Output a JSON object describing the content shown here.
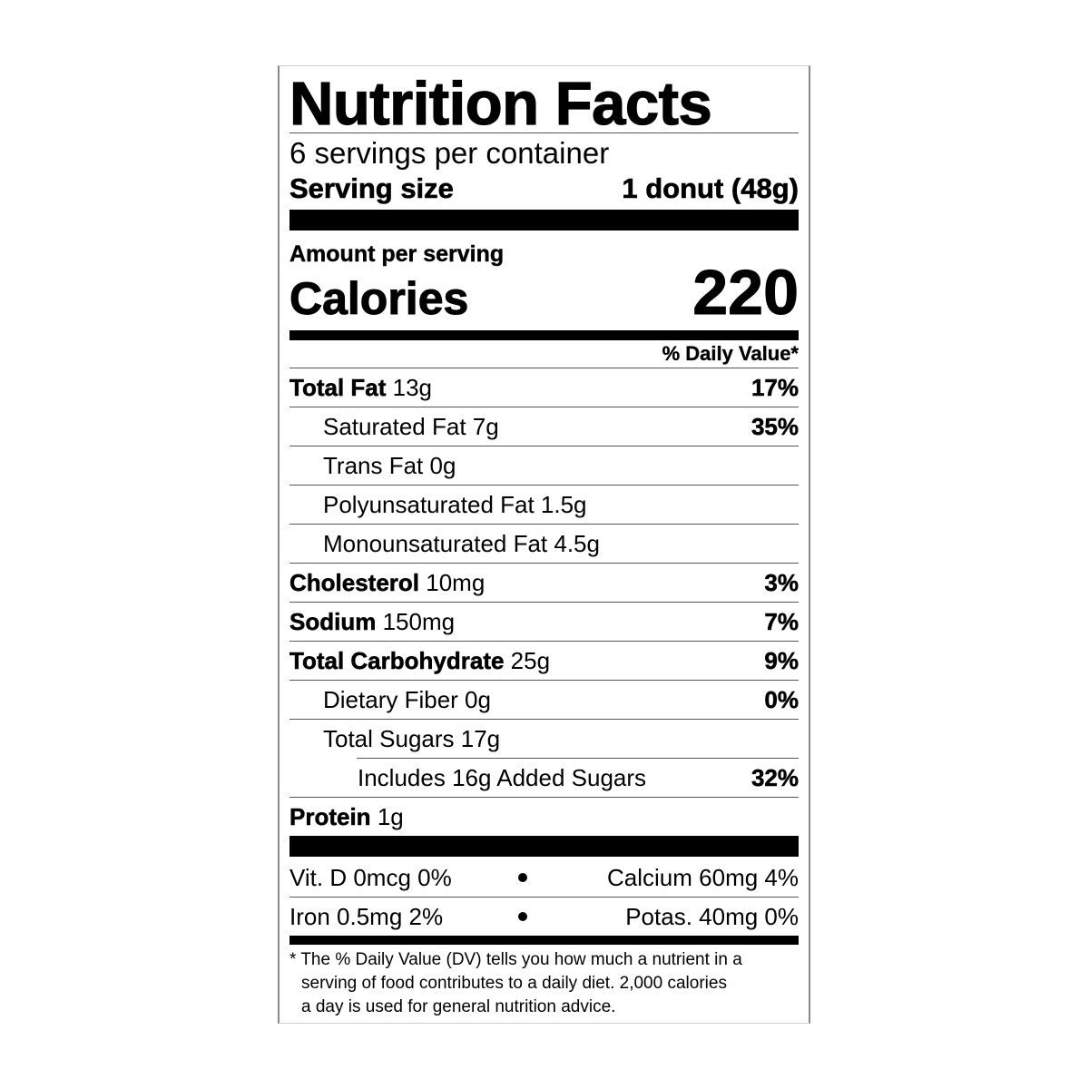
{
  "title": "Nutrition Facts",
  "servings_per_container": "6 servings per container",
  "serving_size": {
    "label": "Serving size",
    "value": "1 donut (48g)"
  },
  "amount_per_serving": "Amount per serving",
  "calories": {
    "label": "Calories",
    "value": "220"
  },
  "daily_value_header": "% Daily Value*",
  "nutrients": [
    {
      "name": "Total Fat",
      "amount": "13g",
      "dv": "17%"
    },
    {
      "name": "Saturated Fat 7g",
      "dv": "35%"
    },
    {
      "name": "Trans Fat 0g",
      "dv": ""
    },
    {
      "name": "Polyunsaturated Fat 1.5g",
      "dv": ""
    },
    {
      "name": "Monounsaturated Fat 4.5g",
      "dv": ""
    },
    {
      "name": "Cholesterol",
      "amount": "10mg",
      "dv": "3%"
    },
    {
      "name": "Sodium",
      "amount": "150mg",
      "dv": "7%"
    },
    {
      "name": "Total Carbohydrate",
      "amount": "25g",
      "dv": "9%"
    },
    {
      "name": "Dietary Fiber 0g",
      "dv": "0%"
    },
    {
      "name": "Total Sugars 17g",
      "dv": ""
    },
    {
      "name": "Includes 16g Added Sugars",
      "dv": "32%"
    },
    {
      "name": "Protein",
      "amount": "1g",
      "dv": ""
    }
  ],
  "vitamins": [
    {
      "left": "Vit. D 0mcg 0%",
      "right": "Calcium 60mg 4%"
    },
    {
      "left": "Iron 0.5mg 2%",
      "right": "Potas. 40mg 0%"
    }
  ],
  "footnote": [
    "* The % Daily Value (DV) tells you how much a nutrient in a",
    "serving of food contributes to a daily diet. 2,000 calories",
    "a day is used for general nutrition advice."
  ]
}
